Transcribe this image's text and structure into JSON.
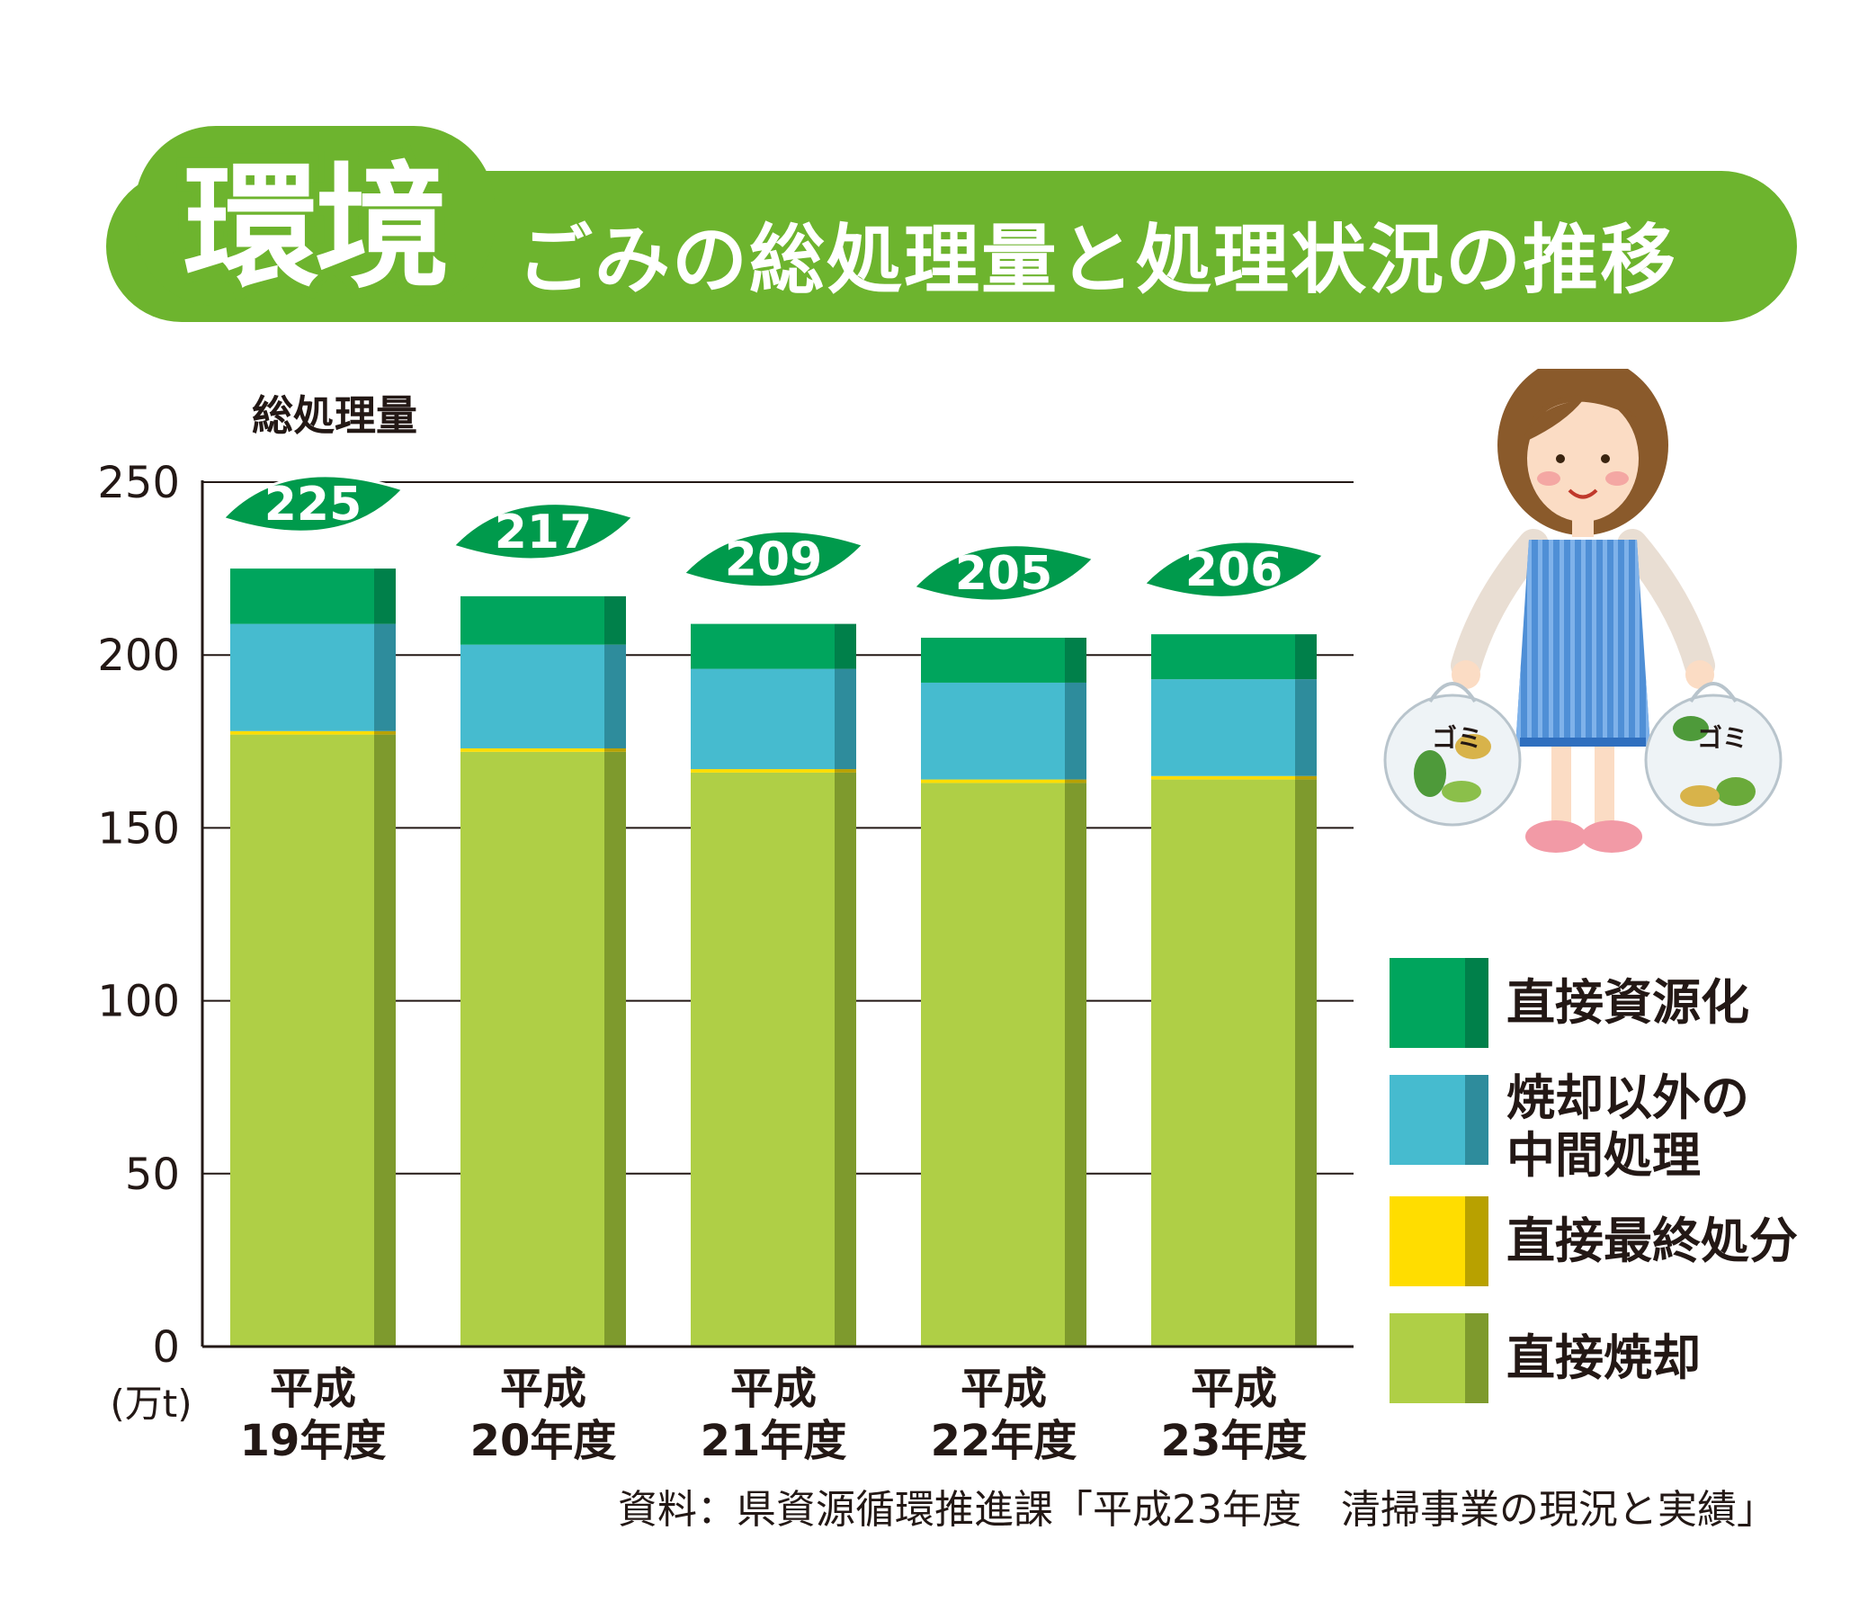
{
  "header": {
    "badge": "環境",
    "title": "ごみの総処理量と処理状況の推移"
  },
  "chart_data": {
    "type": "bar",
    "stacked": true,
    "title": "",
    "ylabel": "総処理量",
    "unit": "(万t)",
    "ylim": [
      0,
      250
    ],
    "yticks": [
      "0",
      "50",
      "100",
      "150",
      "200",
      "250"
    ],
    "grid": true,
    "legend_position": "right",
    "categories": [
      [
        "平成",
        "19年度"
      ],
      [
        "平成",
        "20年度"
      ],
      [
        "平成",
        "21年度"
      ],
      [
        "平成",
        "22年度"
      ],
      [
        "平成",
        "23年度"
      ]
    ],
    "totals": [
      "225",
      "217",
      "209",
      "205",
      "206"
    ],
    "series": [
      {
        "name": "直接焼却",
        "color": "#afcf46",
        "shade": "#7e9a2d",
        "values": [
          177,
          172,
          166,
          163,
          164
        ]
      },
      {
        "name": "直接最終処分",
        "color": "#ffdd00",
        "shade": "#b8a100",
        "values": [
          1,
          1,
          1,
          1,
          1
        ]
      },
      {
        "name": "焼却以外の中間処理",
        "color": "#46bbcf",
        "shade": "#2e8c9c",
        "values": [
          31,
          30,
          29,
          28,
          28
        ]
      },
      {
        "name": "直接資源化",
        "color": "#00a55d",
        "shade": "#00804a",
        "values": [
          16,
          14,
          13,
          13,
          13
        ]
      }
    ]
  },
  "legend": [
    {
      "lines": [
        "直接資源化"
      ],
      "color": "#00a55d",
      "shade": "#00804a"
    },
    {
      "lines": [
        "焼却以外の",
        "中間処理"
      ],
      "color": "#46bbcf",
      "shade": "#2e8c9c"
    },
    {
      "lines": [
        "直接最終処分"
      ],
      "color": "#ffdd00",
      "shade": "#b8a100"
    },
    {
      "lines": [
        "直接焼却"
      ],
      "color": "#afcf46",
      "shade": "#7e9a2d"
    }
  ],
  "illustration": {
    "bag_label": "ゴミ"
  },
  "source": "資料：県資源循環推進課「平成23年度　清掃事業の現況と実績」"
}
